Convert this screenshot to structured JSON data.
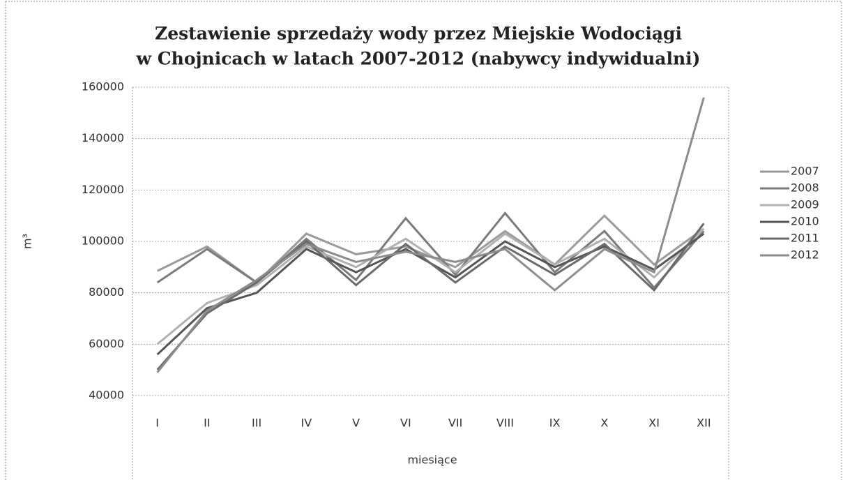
{
  "chart_data": {
    "type": "line",
    "title": [
      "Zestawienie sprzedaży wody przez Miejskie Wodociągi",
      "w Chojnicach w latach 2007-2012 (nabywcy indywidualni)"
    ],
    "xlabel": "miesiące",
    "ylabel": "m³",
    "categories": [
      "I",
      "II",
      "III",
      "IV",
      "V",
      "VI",
      "VII",
      "VIII",
      "IX",
      "X",
      "XI",
      "XII"
    ],
    "series": [
      {
        "name": "2007",
        "color": "#9a9a9a",
        "values": [
          88500,
          98000,
          84000,
          103000,
          95000,
          98000,
          90000,
          104000,
          91000,
          110000,
          91000,
          105000
        ]
      },
      {
        "name": "2008",
        "color": "#7a7a7a",
        "values": [
          84000,
          97000,
          84000,
          101000,
          85000,
          109000,
          87000,
          111000,
          88000,
          104000,
          82000,
          104000
        ]
      },
      {
        "name": "2009",
        "color": "#b0b0b0",
        "values": [
          60000,
          76000,
          83000,
          98000,
          90000,
          101000,
          88000,
          103000,
          91000,
          101000,
          86000,
          105000
        ]
      },
      {
        "name": "2010",
        "color": "#555555",
        "values": [
          56000,
          74000,
          80000,
          97000,
          88000,
          97000,
          86000,
          100000,
          90000,
          98000,
          89000,
          103000
        ]
      },
      {
        "name": "2011",
        "color": "#6a6a6a",
        "values": [
          50000,
          72000,
          84000,
          100000,
          83000,
          99000,
          84000,
          98000,
          87000,
          99000,
          81000,
          107000
        ]
      },
      {
        "name": "2012",
        "color": "#8c8c8c",
        "values": [
          49000,
          73000,
          85000,
          99000,
          92000,
          96000,
          92000,
          97000,
          81000,
          97000,
          88000,
          156000
        ]
      }
    ],
    "ylim": [
      40000,
      160000
    ],
    "yticks": [
      40000,
      60000,
      80000,
      100000,
      120000,
      140000,
      160000
    ],
    "grid": true,
    "legend": "right"
  }
}
